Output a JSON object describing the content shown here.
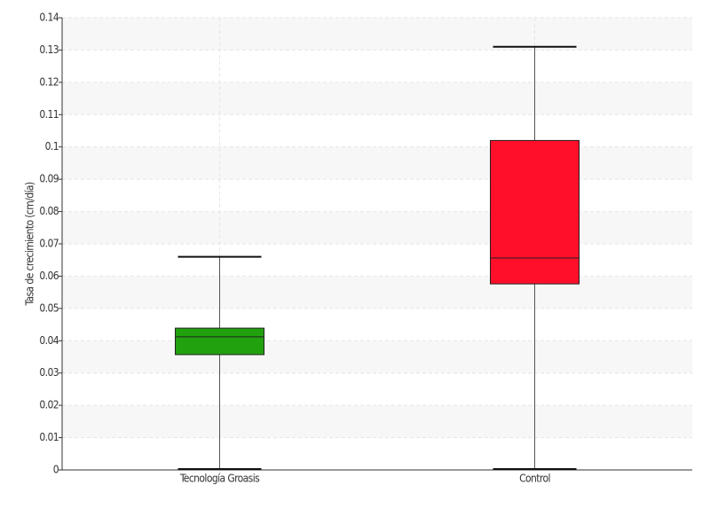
{
  "chart_data": {
    "type": "boxplot",
    "y_label": "Tasa de crecimiento (cm/día)",
    "categories": [
      "Tecnología Groasis",
      "Control"
    ],
    "boxes": [
      {
        "color": "#22a10f",
        "whislo": 0,
        "q1": 0.0357,
        "med": 0.0412,
        "q3": 0.0439,
        "whishi": 0.066
      },
      {
        "color": "#ff0f2a",
        "whislo": 0,
        "q1": 0.0576,
        "med": 0.0656,
        "q3": 0.102,
        "whishi": 0.131
      }
    ],
    "ylim": [
      0,
      0.14
    ],
    "yticks": [
      0,
      0.01,
      0.02,
      0.03,
      0.04,
      0.05,
      0.06,
      0.07,
      0.08,
      0.09,
      0.1,
      0.11,
      0.12,
      0.13,
      0.14
    ],
    "grid": true
  }
}
